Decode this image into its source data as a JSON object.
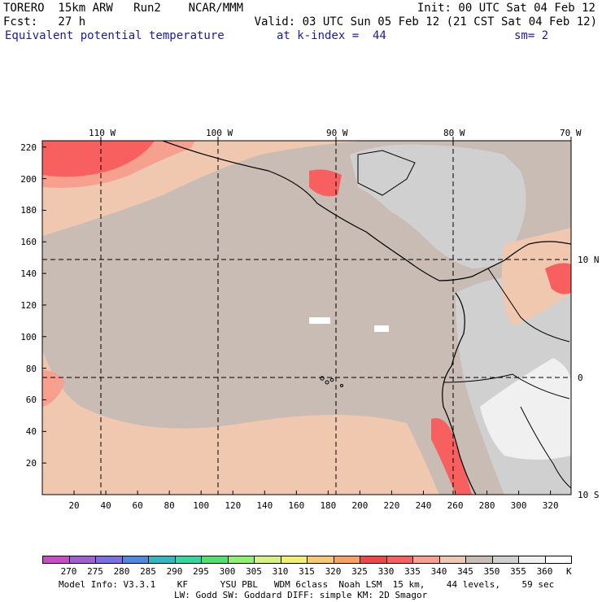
{
  "header": {
    "line1_left": "TORERO  15km ARW   Run2    NCAR/MMM",
    "line1_right": "Init: 00 UTC Sat 04 Feb 12",
    "line2_left": "Fcst:   27 h",
    "line2_right": "Valid: 03 UTC Sun 05 Feb 12 (21 CST Sat 04 Feb 12)",
    "field_name": "Equivalent potential temperature",
    "level": "at k-index =  44",
    "smoothing": "sm= 2"
  },
  "map": {
    "lon_labels": [
      "110 W",
      "100 W",
      "90 W",
      "80 W",
      "70 W"
    ],
    "lat_labels": [
      "10 N",
      "0",
      "10 S"
    ],
    "x_ticks": [
      "20",
      "40",
      "60",
      "80",
      "100",
      "120",
      "140",
      "160",
      "180",
      "200",
      "220",
      "240",
      "260",
      "280",
      "300",
      "320"
    ],
    "y_ticks": [
      "20",
      "40",
      "60",
      "80",
      "100",
      "120",
      "140",
      "160",
      "180",
      "200",
      "220"
    ],
    "land_color": "#c8c8c8",
    "sea_color": "#c8bcb4"
  },
  "colorbar": {
    "labels": [
      "270",
      "275",
      "280",
      "285",
      "290",
      "295",
      "300",
      "305",
      "310",
      "315",
      "320",
      "325",
      "330",
      "335",
      "340",
      "345",
      "350",
      "355",
      "360"
    ],
    "unit": "K",
    "colors": [
      "#c84cc8",
      "#a060d0",
      "#7c70e0",
      "#5088e0",
      "#30b8c0",
      "#30d8a0",
      "#50e070",
      "#90f070",
      "#d8f080",
      "#f0f070",
      "#f8c870",
      "#f8a060",
      "#f04848",
      "#f86060",
      "#f8a090",
      "#f0c8b0",
      "#c8bcb4",
      "#d0d0d0",
      "#f0f0f0",
      "#ffffff"
    ]
  },
  "footer": {
    "line1": "Model Info: V3.3.1    KF      YSU PBL   WDM 6class  Noah LSM  15 km,    44 levels,    59 sec",
    "line2": "LW: Godd SW: Goddard DIFF: simple KM: 2D Smagor"
  }
}
